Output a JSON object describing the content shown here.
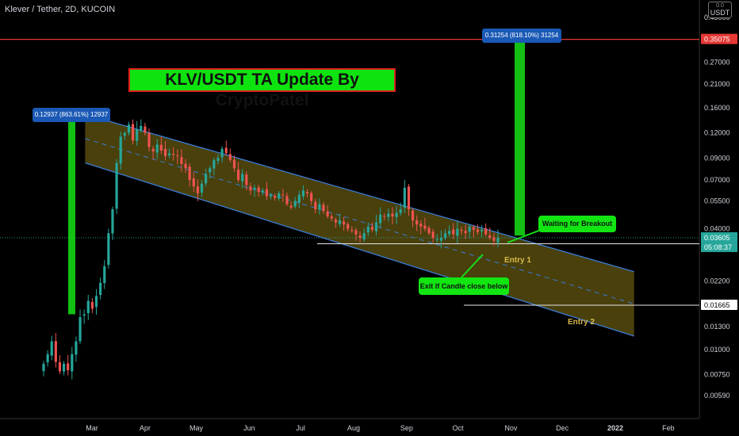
{
  "header": {
    "symbol_title": "Klever / Tether, 2D, KUCOIN",
    "currency_badge": "USDT",
    "currency_badge_top": "0.0"
  },
  "annotations": {
    "main_title": "KLV/USDT TA Update By CryptoPatel",
    "waiting_label": "Waiting for Breakout",
    "exit_label": "Exit If Candle close below",
    "entry1_label": "Entry 1",
    "entry2_label": "Entry 2",
    "measure_left": "0.12937 (863.61%) 12937",
    "measure_right": "0.31254 (818.10%) 31254"
  },
  "price_scale": {
    "ticks": [
      "0.45000",
      "0.35075",
      "0.27000",
      "0.21000",
      "0.16000",
      "0.12000",
      "0.09000",
      "0.07000",
      "0.05500",
      "0.04000",
      "0.03605",
      "0.03367",
      "0.02200",
      "0.01665",
      "0.01300",
      "0.01000",
      "0.00750",
      "0.00590"
    ],
    "current_price": "0.03605",
    "countdown": "05:08:37",
    "target_price": "0.35075",
    "entry1_price": "0.03367",
    "entry2_price": "0.01665"
  },
  "colors": {
    "up": "#26a69a",
    "down": "#ef5350",
    "channel_fill": "#7a6a14",
    "channel_edge": "#3a7bd5",
    "target_line": "#e53935",
    "green_bar": "#17e017",
    "current_price_label": "#26a69a"
  },
  "chart_data": {
    "type": "candlestick",
    "title": "Klever / Tether, 2D, KUCOIN",
    "x_tick_labels": [
      "Mar",
      "Apr",
      "May",
      "Jun",
      "Jul",
      "Aug",
      "Sep",
      "Oct",
      "Nov",
      "Dec",
      "2022",
      "Feb"
    ],
    "y_scale": "log",
    "ylim": [
      0.0052,
      0.52
    ],
    "current_price": 0.03605,
    "target_line": 0.35075,
    "entry_1": 0.03367,
    "entry_2": 0.01665,
    "channel": {
      "upper": [
        [
          "2021-03-01",
          0.145
        ],
        [
          "2022-01-01",
          0.026
        ]
      ],
      "lower": [
        [
          "2021-03-01",
          0.083
        ],
        [
          "2022-01-01",
          0.0125
        ]
      ]
    },
    "measurements": [
      {
        "label": "0.12937 (863.61%) 12937",
        "from": 0.015,
        "to": 0.145
      },
      {
        "label": "0.31254 (818.10%) 31254",
        "from": 0.037,
        "to": 0.345
      }
    ],
    "candles_close": [
      0.0085,
      0.0095,
      0.011,
      0.0087,
      0.0078,
      0.0085,
      0.0079,
      0.0095,
      0.011,
      0.0145,
      0.015,
      0.0175,
      0.016,
      0.0185,
      0.0215,
      0.026,
      0.038,
      0.05,
      0.085,
      0.115,
      0.12,
      0.132,
      0.11,
      0.125,
      0.13,
      0.12,
      0.102,
      0.097,
      0.105,
      0.098,
      0.092,
      0.095,
      0.093,
      0.092,
      0.084,
      0.08,
      0.07,
      0.065,
      0.06,
      0.067,
      0.075,
      0.08,
      0.088,
      0.09,
      0.1,
      0.095,
      0.088,
      0.08,
      0.07,
      0.075,
      0.066,
      0.062,
      0.064,
      0.061,
      0.062,
      0.058,
      0.059,
      0.057,
      0.06,
      0.059,
      0.053,
      0.051,
      0.055,
      0.059,
      0.062,
      0.06,
      0.055,
      0.05,
      0.053,
      0.049,
      0.046,
      0.045,
      0.043,
      0.044,
      0.042,
      0.04,
      0.039,
      0.0375,
      0.036,
      0.038,
      0.041,
      0.0395,
      0.043,
      0.047,
      0.046,
      0.0475,
      0.046,
      0.048,
      0.05,
      0.064,
      0.05,
      0.044,
      0.042,
      0.041,
      0.04,
      0.038,
      0.036,
      0.0355,
      0.036,
      0.038,
      0.039,
      0.0375,
      0.04,
      0.039,
      0.038,
      0.041,
      0.0395,
      0.0385,
      0.0395,
      0.0375,
      0.036,
      0.0348,
      0.0361
    ]
  }
}
